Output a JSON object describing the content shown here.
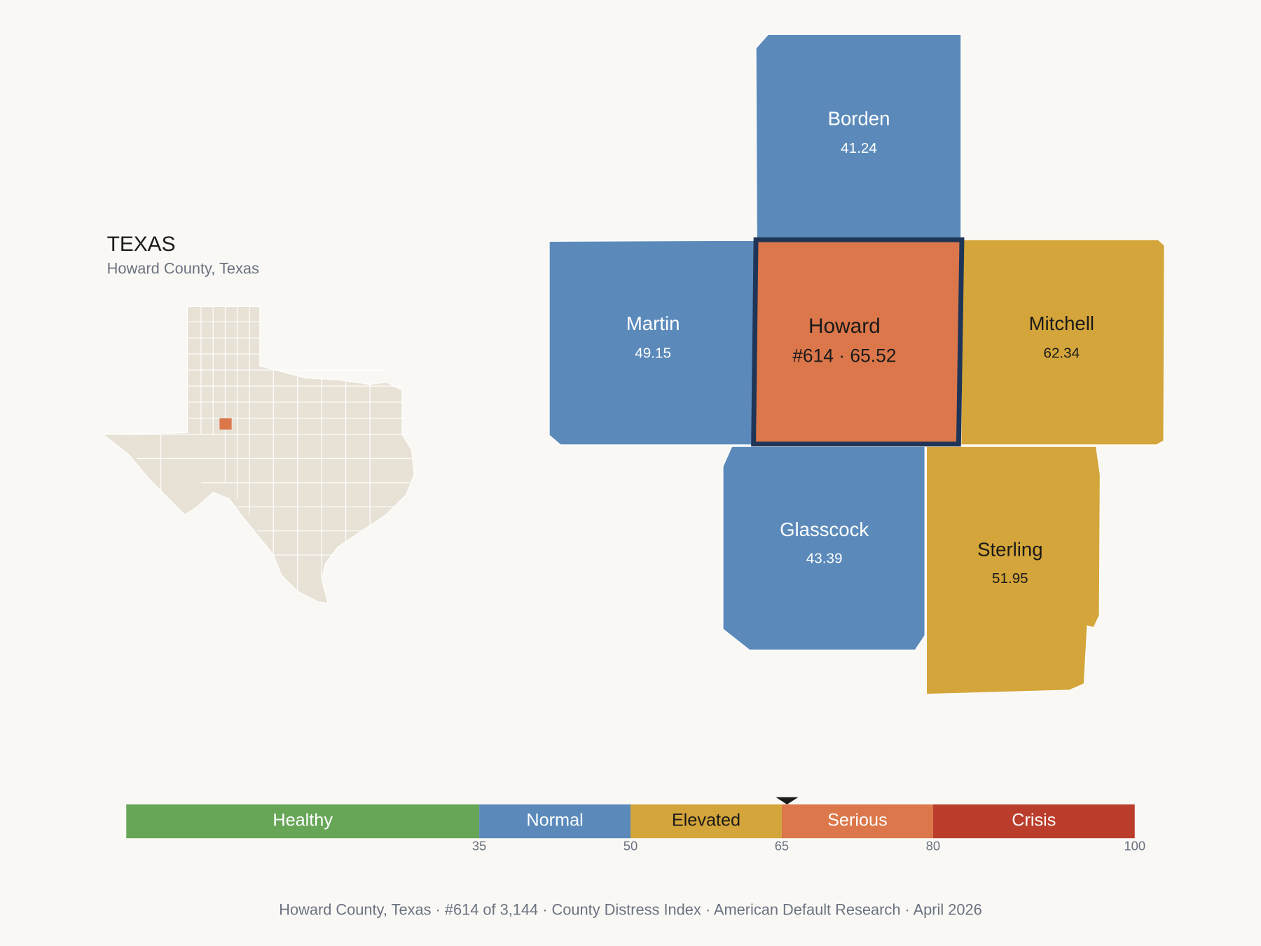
{
  "header": {
    "title": "TEXAS",
    "subtitle": "Howard County, Texas"
  },
  "counties": [
    {
      "name": "Howard",
      "label": "#614 · 65.52",
      "score": 65.52
    },
    {
      "name": "Borden",
      "score": 41.24
    },
    {
      "name": "Martin",
      "score": 49.15
    },
    {
      "name": "Mitchell",
      "score": 62.34
    },
    {
      "name": "Glasscock",
      "score": 43.39
    },
    {
      "name": "Sterling",
      "score": 51.95
    }
  ],
  "scale": {
    "xlim": [
      0,
      100
    ],
    "ticks": [
      35,
      50,
      65,
      80,
      100
    ],
    "segments": [
      {
        "name": "Healthy",
        "color": "#67a657",
        "text_color": "#ffffff"
      },
      {
        "name": "Normal",
        "color": "#5b8aba",
        "text_color": "#ffffff"
      },
      {
        "name": "Elevated",
        "color": "#d4a53a",
        "text_color": "#1a1a1a"
      },
      {
        "name": "Serious",
        "color": "#db774a",
        "text_color": "#ffffff"
      },
      {
        "name": "Crisis",
        "color": "#bb3d2c",
        "text_color": "#ffffff"
      }
    ]
  },
  "footer": "Howard County, Texas  ·  #614 of 3,144  ·  County Distress Index  ·  American Default Research  ·  April 2026"
}
